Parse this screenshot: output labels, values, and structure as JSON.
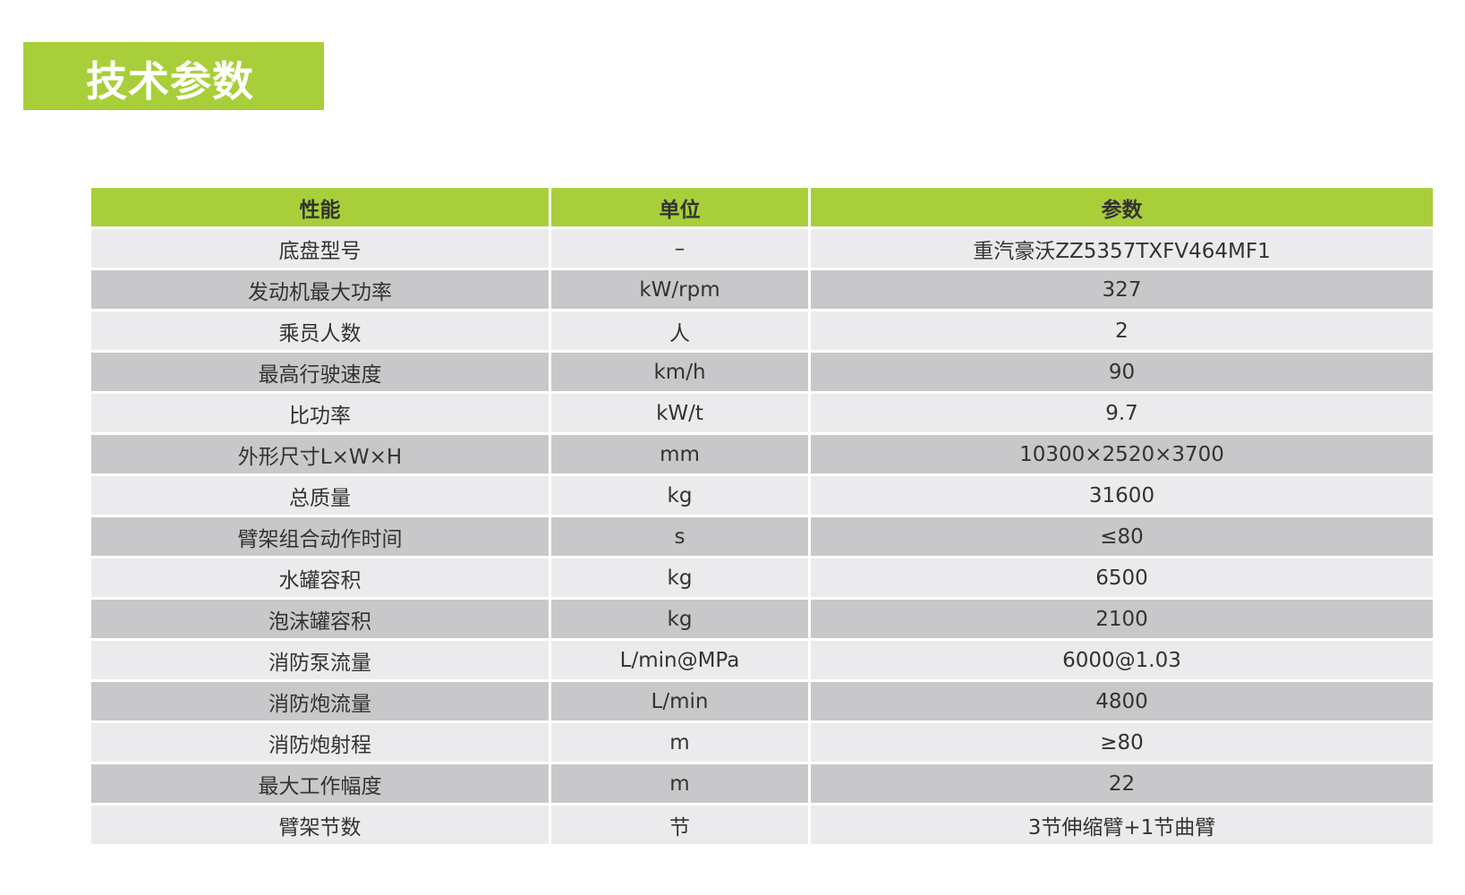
{
  "title": "技术参数",
  "colors": {
    "accent": "#a8cf3a",
    "row_light": "#ebebed",
    "row_dark": "#c8c8ca"
  },
  "table": {
    "headers": [
      "性能",
      "单位",
      "参数"
    ],
    "rows": [
      [
        "底盘型号",
        "–",
        "重汽豪沃ZZ5357TXFV464MF1"
      ],
      [
        "发动机最大功率",
        "kW/rpm",
        "327"
      ],
      [
        "乘员人数",
        "人",
        "2"
      ],
      [
        "最高行驶速度",
        "km/h",
        "90"
      ],
      [
        "比功率",
        "kW/t",
        "9.7"
      ],
      [
        "外形尺寸L×W×H",
        "mm",
        "10300×2520×3700"
      ],
      [
        "总质量",
        "kg",
        "31600"
      ],
      [
        "臂架组合动作时间",
        "s",
        "≤80"
      ],
      [
        "水罐容积",
        "kg",
        "6500"
      ],
      [
        "泡沫罐容积",
        "kg",
        "2100"
      ],
      [
        "消防泵流量",
        "L/min@MPa",
        "6000@1.03"
      ],
      [
        "消防炮流量",
        "L/min",
        "4800"
      ],
      [
        "消防炮射程",
        "m",
        "≥80"
      ],
      [
        "最大工作幅度",
        "m",
        "22"
      ],
      [
        "臂架节数",
        "节",
        "3节伸缩臂+1节曲臂"
      ]
    ]
  }
}
